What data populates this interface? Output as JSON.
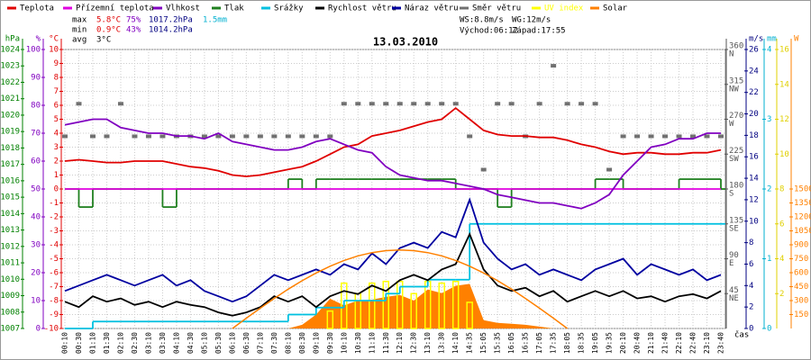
{
  "chart_data": {
    "type": "line",
    "title": "13.03.2010",
    "x_label": "čas",
    "categories": [
      "00:10",
      "00:30",
      "01:10",
      "01:30",
      "02:10",
      "02:30",
      "03:10",
      "03:30",
      "04:10",
      "04:30",
      "05:10",
      "05:30",
      "06:10",
      "06:30",
      "07:10",
      "07:30",
      "08:10",
      "08:30",
      "09:10",
      "09:30",
      "10:10",
      "10:30",
      "11:10",
      "11:30",
      "12:10",
      "12:30",
      "13:10",
      "13:30",
      "14:10",
      "14:35",
      "15:05",
      "15:35",
      "16:05",
      "16:35",
      "17:05",
      "17:35",
      "18:05",
      "18:35",
      "19:05",
      "19:35",
      "20:10",
      "20:40",
      "21:10",
      "21:40",
      "22:10",
      "22:40",
      "23:10",
      "23:40"
    ],
    "grid": true,
    "axes": [
      {
        "unit": "hPa",
        "color": "#008000",
        "side": "left",
        "lim": [
          1007,
          1024
        ],
        "ticks": [
          1007,
          1008,
          1009,
          1010,
          1011,
          1012,
          1013,
          1014,
          1015,
          1016,
          1017,
          1018,
          1019,
          1020,
          1021,
          1022,
          1023,
          1024
        ]
      },
      {
        "unit": "%",
        "color": "#8000c0",
        "side": "left",
        "lim": [
          0,
          100
        ],
        "ticks": [
          0,
          10,
          20,
          30,
          40,
          50,
          60,
          70,
          80,
          90,
          100
        ]
      },
      {
        "unit": "°C",
        "color": "#e00000",
        "side": "left",
        "lim": [
          -10,
          10
        ],
        "ticks": [
          -10,
          -9,
          -8,
          -7,
          -6,
          -5,
          -4,
          -3,
          -2,
          -1,
          0,
          1,
          2,
          3,
          4,
          5,
          6,
          7,
          8,
          9,
          10
        ]
      },
      {
        "color": "#555555",
        "side": "right",
        "lim": [
          0,
          360
        ],
        "ticks": [
          45,
          90,
          135,
          180,
          225,
          270,
          315,
          360
        ],
        "compass": [
          "NE",
          "E",
          "SE",
          "S",
          "SW",
          "W",
          "NW",
          "N"
        ]
      },
      {
        "unit": "m/s",
        "color": "#000080",
        "side": "right",
        "lim": [
          0,
          26
        ],
        "ticks": [
          0,
          2,
          4,
          6,
          8,
          10,
          12,
          14,
          16,
          18,
          20,
          22,
          24,
          26
        ]
      },
      {
        "unit": "mm",
        "color": "#00b0d0",
        "side": "right",
        "lim": [
          0,
          4
        ],
        "ticks": [
          0,
          1,
          2,
          3,
          4
        ]
      },
      {
        "color": "#e0d000",
        "side": "right",
        "lim": [
          0,
          16
        ],
        "ticks": [
          2,
          4,
          6,
          8,
          10,
          12,
          14,
          16
        ]
      },
      {
        "unit": "W",
        "color": "#ff8000",
        "side": "right",
        "lim": [
          0,
          3000
        ],
        "ticks": [
          150,
          300,
          450,
          600,
          750,
          900,
          1050,
          1200,
          1350,
          1500
        ]
      }
    ],
    "series": [
      {
        "name": "Teplota",
        "color": "#e00000",
        "kind": "line",
        "axis": 2,
        "values": [
          2.0,
          2.1,
          2.0,
          1.9,
          1.9,
          2.0,
          2.0,
          2.0,
          1.8,
          1.6,
          1.5,
          1.3,
          1.0,
          0.9,
          1.0,
          1.2,
          1.4,
          1.6,
          2.0,
          2.5,
          3.0,
          3.2,
          3.8,
          4.0,
          4.2,
          4.5,
          4.8,
          5.0,
          5.8,
          5.0,
          4.2,
          3.9,
          3.8,
          3.8,
          3.7,
          3.7,
          3.5,
          3.2,
          3.0,
          2.7,
          2.5,
          2.6,
          2.6,
          2.5,
          2.5,
          2.6,
          2.6,
          2.8
        ]
      },
      {
        "name": "Přízemní teplota",
        "color": "#e000e0",
        "kind": "line",
        "axis": 2,
        "values": [
          0,
          0,
          0,
          0,
          0,
          0,
          0,
          0,
          0,
          0,
          0,
          0,
          0,
          0,
          0,
          0,
          0,
          0,
          0,
          0,
          0,
          0,
          0,
          0,
          0,
          0,
          0,
          0,
          0,
          0,
          0,
          0,
          0,
          0,
          0,
          0,
          0,
          0,
          0,
          0,
          0,
          0,
          0,
          0,
          0,
          0,
          0,
          0
        ]
      },
      {
        "name": "Vlhkost",
        "color": "#8000c0",
        "kind": "line",
        "axis": 1,
        "values": [
          73,
          74,
          75,
          75,
          72,
          71,
          70,
          70,
          69,
          69,
          68,
          70,
          67,
          66,
          65,
          64,
          64,
          65,
          67,
          68,
          66,
          64,
          63,
          58,
          55,
          54,
          53,
          53,
          52,
          51,
          50,
          48,
          47,
          46,
          45,
          45,
          44,
          43,
          45,
          48,
          55,
          60,
          65,
          66,
          68,
          68,
          70,
          70
        ]
      },
      {
        "name": "Tlak",
        "color": "#208020",
        "kind": "step",
        "axis": 0,
        "values": [
          1015.5,
          1014.4,
          1015.5,
          1015.5,
          1015.5,
          1015.5,
          1015.5,
          1014.4,
          1015.5,
          1015.5,
          1015.5,
          1015.5,
          1015.5,
          1015.5,
          1015.5,
          1015.5,
          1016.1,
          1015.5,
          1016.1,
          1016.1,
          1016.1,
          1016.1,
          1016.1,
          1016.1,
          1016.1,
          1016.1,
          1016.1,
          1016.1,
          1015.5,
          1015.5,
          1015.5,
          1014.4,
          1015.5,
          1015.5,
          1015.5,
          1015.5,
          1015.5,
          1015.5,
          1016.1,
          1016.1,
          1015.5,
          1015.5,
          1015.5,
          1015.5,
          1016.1,
          1016.1,
          1016.1,
          1015.5
        ]
      },
      {
        "name": "Srážky",
        "color": "#00c0e0",
        "kind": "step",
        "axis": 5,
        "values": [
          0,
          0,
          0.1,
          0.1,
          0.1,
          0.1,
          0.1,
          0.1,
          0.1,
          0.1,
          0.1,
          0.1,
          0.1,
          0.1,
          0.1,
          0.1,
          0.2,
          0.2,
          0.3,
          0.3,
          0.4,
          0.4,
          0.4,
          0.5,
          0.6,
          0.6,
          0.7,
          0.7,
          0.7,
          1.5,
          1.5,
          1.5,
          1.5,
          1.5,
          1.5,
          1.5,
          1.5,
          1.5,
          1.5,
          1.5,
          1.5,
          1.5,
          1.5,
          1.5,
          1.5,
          1.5,
          1.5,
          1.5
        ]
      },
      {
        "name": "Rychlost větru",
        "color": "#000000",
        "kind": "line",
        "axis": 4,
        "values": [
          2.5,
          2.0,
          3.0,
          2.5,
          2.8,
          2.2,
          2.5,
          2.0,
          2.5,
          2.2,
          2.0,
          1.5,
          1.2,
          1.5,
          2.0,
          3.0,
          2.5,
          3.0,
          2.0,
          3.0,
          3.5,
          3.2,
          4.0,
          3.5,
          4.5,
          5.0,
          4.5,
          5.5,
          6.0,
          8.8,
          5.5,
          4.0,
          3.5,
          3.8,
          3.0,
          3.5,
          2.5,
          3.0,
          3.5,
          3.0,
          3.5,
          2.8,
          3.0,
          2.5,
          3.0,
          3.2,
          2.8,
          3.5
        ]
      },
      {
        "name": "Náraz větru",
        "color": "#0000a0",
        "kind": "line",
        "axis": 4,
        "values": [
          3.5,
          4.0,
          4.5,
          5.0,
          4.5,
          4.0,
          4.5,
          5.0,
          4.0,
          4.5,
          3.5,
          3.0,
          2.5,
          3.0,
          4.0,
          5.0,
          4.5,
          5.0,
          5.5,
          5.0,
          6.0,
          5.5,
          7.0,
          6.0,
          7.5,
          8.0,
          7.5,
          9.0,
          8.5,
          12.0,
          8.0,
          6.5,
          5.5,
          6.0,
          5.0,
          5.5,
          5.0,
          4.5,
          5.5,
          6.0,
          6.5,
          5.0,
          6.0,
          5.5,
          5.0,
          5.5,
          4.5,
          5.0
        ]
      },
      {
        "name": "Směr větru",
        "color": "#707070",
        "kind": "points",
        "axis": 3,
        "values": [
          248,
          290,
          248,
          248,
          290,
          248,
          248,
          248,
          248,
          248,
          248,
          248,
          248,
          248,
          248,
          248,
          248,
          248,
          248,
          248,
          290,
          290,
          290,
          290,
          290,
          290,
          290,
          290,
          290,
          248,
          205,
          290,
          290,
          248,
          290,
          339,
          290,
          290,
          290,
          205,
          248,
          248,
          248,
          248,
          248,
          248,
          248,
          248
        ]
      },
      {
        "name": "UV index",
        "color": "#ffff00",
        "kind": "bars",
        "axis": 6,
        "values": [
          0,
          0,
          0,
          0,
          0,
          0,
          0,
          0,
          0,
          0,
          0,
          0,
          0,
          0,
          0,
          0,
          0,
          0,
          0,
          1.0,
          2.6,
          2.0,
          2.6,
          2.7,
          2.7,
          2.0,
          2.7,
          2.6,
          2.7,
          1.5,
          0,
          0,
          0,
          0,
          0,
          0,
          0,
          0,
          0,
          0,
          0,
          0,
          0,
          0,
          0,
          0,
          0,
          0
        ]
      },
      {
        "name": "Solar",
        "color": "#ff8000",
        "kind": "area",
        "axis": 7,
        "values": [
          0,
          0,
          0,
          0,
          0,
          0,
          0,
          0,
          0,
          0,
          0,
          0,
          0,
          0,
          0,
          0,
          0,
          40,
          150,
          320,
          250,
          300,
          310,
          340,
          360,
          300,
          420,
          380,
          460,
          480,
          90,
          60,
          50,
          40,
          20,
          0,
          0,
          0,
          0,
          0,
          0,
          0,
          0,
          0,
          0,
          0,
          0,
          0
        ]
      }
    ],
    "solar_max": {
      "color": "#ff8000",
      "axis": 7,
      "values": [
        null,
        null,
        null,
        null,
        null,
        null,
        null,
        null,
        null,
        null,
        null,
        null,
        0,
        111,
        219,
        323,
        423,
        514,
        597,
        670,
        732,
        781,
        816,
        837,
        845,
        837,
        816,
        781,
        732,
        670,
        597,
        514,
        423,
        323,
        219,
        111,
        0,
        null,
        null,
        null,
        null,
        null,
        null,
        null,
        null,
        null,
        null,
        null
      ]
    },
    "stats": [
      {
        "label": "max",
        "values": [
          "5.8°C",
          "75%",
          "1017.2hPa",
          "1.5mm"
        ]
      },
      {
        "label": "min",
        "values": [
          "0.9°C",
          "43%",
          "1014.2hPa"
        ]
      },
      {
        "label": "avg",
        "values": [
          "3°C"
        ]
      }
    ],
    "wind": [
      "WS:8.8m/s",
      "WG:12m/s"
    ],
    "sun": [
      "Východ:06:12",
      "Západ:17:55"
    ]
  }
}
